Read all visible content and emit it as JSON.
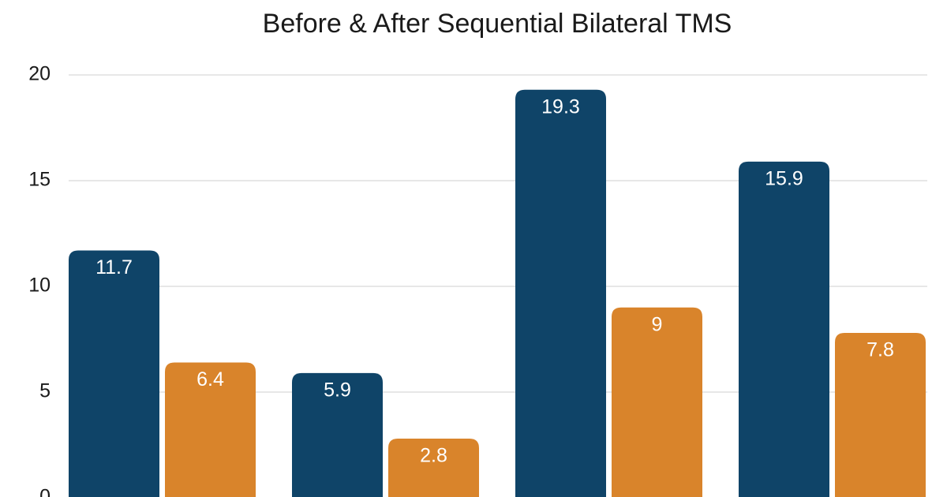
{
  "chart_data": {
    "type": "bar",
    "title": "Before & After Sequential Bilateral TMS",
    "categories": [
      null,
      null,
      null,
      null
    ],
    "series": [
      {
        "color": "#0f4468",
        "values": [
          11.7,
          5.9,
          19.3,
          15.9
        ]
      },
      {
        "color": "#d9842b",
        "values": [
          6.4,
          2.8,
          9,
          7.8
        ]
      }
    ],
    "ylim": [
      0,
      20
    ],
    "yticks": [
      0,
      5,
      10,
      15,
      20
    ],
    "grid": true
  }
}
